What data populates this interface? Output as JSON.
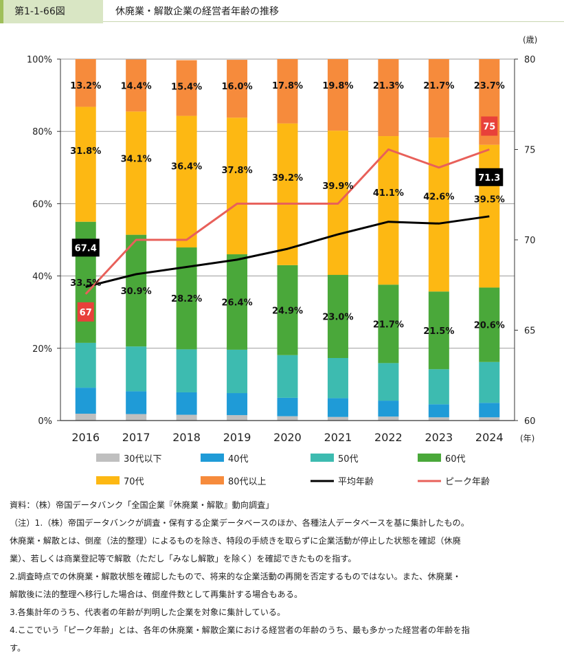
{
  "header": {
    "figure_no": "第1-1-66図",
    "title": "休廃業・解散企業の経営者年齢の推移"
  },
  "chart_data": {
    "type": "bar",
    "stacked": true,
    "categories": [
      "2016",
      "2017",
      "2018",
      "2019",
      "2020",
      "2021",
      "2022",
      "2023",
      "2024"
    ],
    "x_unit": "(年)",
    "left_axis": {
      "ylim": [
        0,
        100
      ],
      "ticks": [
        "0%",
        "20%",
        "40%",
        "60%",
        "80%",
        "100%"
      ]
    },
    "right_axis": {
      "unit": "(歳)",
      "ylim": [
        60,
        80
      ],
      "ticks": [
        "60",
        "65",
        "70",
        "75",
        "80"
      ]
    },
    "series": [
      {
        "name": "30代以下",
        "color": "#bfbfbf",
        "values": [
          1.9,
          1.8,
          1.6,
          1.5,
          1.2,
          1.0,
          1.1,
          0.9,
          0.9
        ],
        "labels": [
          "",
          "",
          "",
          "",
          "",
          "",
          "",
          "",
          ""
        ]
      },
      {
        "name": "40代",
        "color": "#1f9bd7",
        "values": [
          7.2,
          6.3,
          6.2,
          6.1,
          5.1,
          5.2,
          4.4,
          3.6,
          4.0
        ],
        "labels": [
          "",
          "",
          "",
          "",
          "",
          "",
          "",
          "",
          ""
        ]
      },
      {
        "name": "50代",
        "color": "#3dbbb0",
        "values": [
          12.4,
          12.4,
          11.9,
          12.0,
          11.8,
          11.1,
          10.4,
          9.7,
          11.3
        ],
        "labels": [
          "",
          "",
          "",
          "",
          "",
          "",
          "",
          "",
          ""
        ]
      },
      {
        "name": "60代",
        "color": "#4aa83a",
        "values": [
          33.5,
          30.9,
          28.2,
          26.4,
          24.9,
          23.0,
          21.7,
          21.5,
          20.6
        ],
        "labels": [
          "33.5%",
          "30.9%",
          "28.2%",
          "26.4%",
          "24.9%",
          "23.0%",
          "21.7%",
          "21.5%",
          "20.6%"
        ]
      },
      {
        "name": "70代",
        "color": "#fdb813",
        "values": [
          31.8,
          34.1,
          36.4,
          37.8,
          39.2,
          39.9,
          41.1,
          42.6,
          39.5
        ],
        "labels": [
          "31.8%",
          "34.1%",
          "36.4%",
          "37.8%",
          "39.2%",
          "39.9%",
          "41.1%",
          "42.6%",
          "39.5%"
        ]
      },
      {
        "name": "80代以上",
        "color": "#f68b3c",
        "values": [
          13.2,
          14.4,
          15.4,
          16.0,
          17.8,
          19.8,
          21.3,
          21.7,
          23.7
        ],
        "labels": [
          "13.2%",
          "14.4%",
          "15.4%",
          "16.0%",
          "17.8%",
          "19.8%",
          "21.3%",
          "21.7%",
          "23.7%"
        ]
      }
    ],
    "lines": [
      {
        "name": "平均年齢",
        "color": "#000000",
        "axis": "right",
        "values": [
          67.4,
          68.1,
          68.5,
          68.9,
          69.5,
          70.3,
          71.0,
          70.9,
          71.3
        ],
        "callouts": [
          {
            "index": 0,
            "text": "67.4"
          },
          {
            "index": 8,
            "text": "71.3"
          }
        ]
      },
      {
        "name": "ピーク年齢",
        "color": "#e8605a",
        "axis": "right",
        "values": [
          67,
          70,
          70,
          72,
          72,
          72,
          75,
          74,
          75
        ],
        "callouts": [
          {
            "index": 0,
            "text": "67"
          },
          {
            "index": 8,
            "text": "75"
          }
        ]
      }
    ],
    "legend": {
      "placement": "bottom",
      "items": [
        "30代以下",
        "40代",
        "50代",
        "60代",
        "70代",
        "80代以上",
        "平均年齢",
        "ピーク年齢"
      ]
    }
  },
  "notes": [
    "資料：（株）帝国データバンク「全国企業『休廃業・解散』動向調査」",
    "（注）1.（株）帝国データバンクが調査・保有する企業データベースのほか、各種法人データベースを基に集計したもの。",
    "休廃業・解散とは、倒産（法的整理）によるものを除き、特段の手続きを取らずに企業活動が停止した状態を確認（休廃",
    "業）、若しくは商業登記等で解散（ただし「みなし解散」を除く）を確認できたものを指す。",
    "2.調査時点での休廃業・解散状態を確認したもので、将来的な企業活動の再開を否定するものではない。また、休廃業・",
    "解散後に法的整理へ移行した場合は、倒産件数として再集計する場合もある。",
    "3.各集計年のうち、代表者の年齢が判明した企業を対象に集計している。",
    "4.ここでいう「ピーク年齢」とは、各年の休廃業・解散企業における経営者の年齢のうち、最も多かった経営者の年齢を指",
    "す。"
  ]
}
